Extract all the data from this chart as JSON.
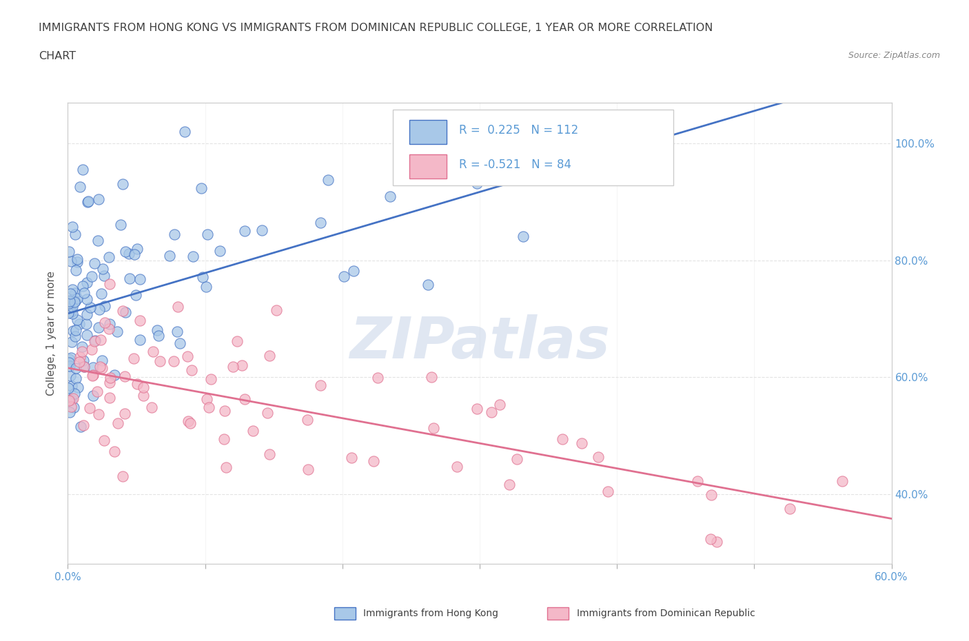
{
  "title_line1": "IMMIGRANTS FROM HONG KONG VS IMMIGRANTS FROM DOMINICAN REPUBLIC COLLEGE, 1 YEAR OR MORE CORRELATION",
  "title_line2": "CHART",
  "source": "Source: ZipAtlas.com",
  "ylabel": "College, 1 year or more",
  "xlim": [
    0.0,
    0.6
  ],
  "ylim": [
    0.28,
    1.07
  ],
  "xticks": [
    0.0,
    0.1,
    0.2,
    0.3,
    0.4,
    0.5,
    0.6
  ],
  "xticklabels": [
    "0.0%",
    "",
    "",
    "",
    "",
    "",
    "60.0%"
  ],
  "yticks": [
    0.4,
    0.6,
    0.8,
    1.0
  ],
  "yticklabels": [
    "40.0%",
    "60.0%",
    "80.0%",
    "100.0%"
  ],
  "hk_color": "#a8c8e8",
  "hk_edge_color": "#4472c4",
  "dr_color": "#f4b8c8",
  "dr_edge_color": "#e07090",
  "hk_line_color": "#4472c4",
  "dr_line_color": "#e07090",
  "hk_R": 0.225,
  "hk_N": 112,
  "dr_R": -0.521,
  "dr_N": 84,
  "watermark": "ZIPatlas",
  "watermark_color": "#c8d4e8",
  "background_color": "#ffffff",
  "grid_color": "#e0e0e0",
  "title_color": "#404040",
  "tick_color": "#5b9bd5",
  "ylabel_color": "#555555",
  "source_color": "#888888",
  "legend_text_color": "#5b9bd5"
}
